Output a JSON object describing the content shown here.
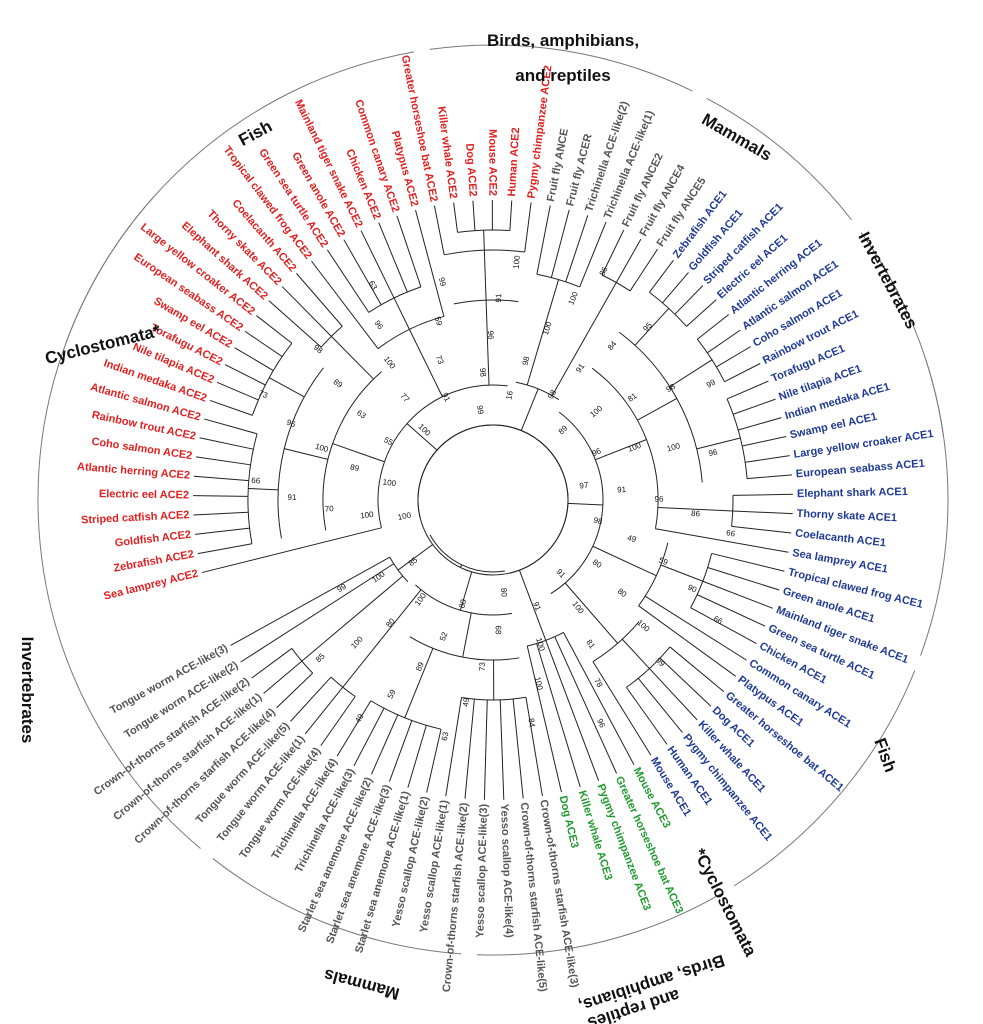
{
  "colors": {
    "ace2": "#e02020",
    "ace1": "#1f3a93",
    "ace3": "#1f9a2f",
    "like": "#555555"
  },
  "groups": {
    "fish_top": "Fish",
    "birds_top": "Birds, amphibians, and reptiles",
    "mammals_top": "Mammals",
    "invert_top": "Invertebrates",
    "cyclo_top": "Cyclostomata*",
    "invert_left": "Invertebrates",
    "mammals_bottom": "Mammals",
    "birds_bottom": "Birds, amphibians, and reptiles",
    "cyclo_bottom": "*Cyclostomata",
    "fish_right": "Fish"
  },
  "leaves": [
    {
      "label": "Sea lamprey ACE2",
      "cls": "ace2"
    },
    {
      "label": "Zebrafish ACE2",
      "cls": "ace2"
    },
    {
      "label": "Goldfish ACE2",
      "cls": "ace2"
    },
    {
      "label": "Striped catfish ACE2",
      "cls": "ace2"
    },
    {
      "label": "Electric eel ACE2",
      "cls": "ace2"
    },
    {
      "label": "Atlantic herring ACE2",
      "cls": "ace2"
    },
    {
      "label": "Coho salmon ACE2",
      "cls": "ace2"
    },
    {
      "label": "Rainbow trout ACE2",
      "cls": "ace2"
    },
    {
      "label": "Atlantic salmon ACE2",
      "cls": "ace2"
    },
    {
      "label": "Indian medaka ACE2",
      "cls": "ace2"
    },
    {
      "label": "Nile tilapia ACE2",
      "cls": "ace2"
    },
    {
      "label": "Torafugu ACE2",
      "cls": "ace2"
    },
    {
      "label": "Swamp eel ACE2",
      "cls": "ace2"
    },
    {
      "label": "European seabass ACE2",
      "cls": "ace2"
    },
    {
      "label": "Large yellow croaker ACE2",
      "cls": "ace2"
    },
    {
      "label": "Elephant shark ACE2",
      "cls": "ace2"
    },
    {
      "label": "Thorny skate ACE2",
      "cls": "ace2"
    },
    {
      "label": "Coelacanth ACE2",
      "cls": "ace2"
    },
    {
      "label": "Tropical clawed frog ACE2",
      "cls": "ace2"
    },
    {
      "label": "Green sea turtle ACE2",
      "cls": "ace2"
    },
    {
      "label": "Green anole ACE2",
      "cls": "ace2"
    },
    {
      "label": "Mainland tiger snake ACE2",
      "cls": "ace2"
    },
    {
      "label": "Chicken ACE2",
      "cls": "ace2"
    },
    {
      "label": "Common canary ACE2",
      "cls": "ace2"
    },
    {
      "label": "Platypus ACE2",
      "cls": "ace2"
    },
    {
      "label": "Greater horseshoe bat ACE2",
      "cls": "ace2"
    },
    {
      "label": "Killer whale ACE2",
      "cls": "ace2"
    },
    {
      "label": "Dog ACE2",
      "cls": "ace2"
    },
    {
      "label": "Mouse ACE2",
      "cls": "ace2"
    },
    {
      "label": "Human ACE2",
      "cls": "ace2"
    },
    {
      "label": "Pygmy chimpanzee ACE2",
      "cls": "ace2"
    },
    {
      "label": "Fruit fly ANCE",
      "cls": "like"
    },
    {
      "label": "Fruit fly ACER",
      "cls": "like"
    },
    {
      "label": "Trichinella ACE-like(2)",
      "cls": "like"
    },
    {
      "label": "Trichinella ACE-like(1)",
      "cls": "like"
    },
    {
      "label": "Fruit fly ANCE2",
      "cls": "like"
    },
    {
      "label": "Fruit fly ANCE4",
      "cls": "like"
    },
    {
      "label": "Fruit fly ANCE5",
      "cls": "like"
    },
    {
      "label": "Zebrafish ACE1",
      "cls": "ace1"
    },
    {
      "label": "Goldfish ACE1",
      "cls": "ace1"
    },
    {
      "label": "Striped catfish ACE1",
      "cls": "ace1"
    },
    {
      "label": "Electric eel ACE1",
      "cls": "ace1"
    },
    {
      "label": "Atlantic herring ACE1",
      "cls": "ace1"
    },
    {
      "label": "Atlantic salmon ACE1",
      "cls": "ace1"
    },
    {
      "label": "Coho salmon ACE1",
      "cls": "ace1"
    },
    {
      "label": "Rainbow trout ACE1",
      "cls": "ace1"
    },
    {
      "label": "Torafugu ACE1",
      "cls": "ace1"
    },
    {
      "label": "Nile tilapia ACE1",
      "cls": "ace1"
    },
    {
      "label": "Indian medaka ACE1",
      "cls": "ace1"
    },
    {
      "label": "Swamp eel ACE1",
      "cls": "ace1"
    },
    {
      "label": "Large yellow croaker ACE1",
      "cls": "ace1"
    },
    {
      "label": "European seabass ACE1",
      "cls": "ace1"
    },
    {
      "label": "Elephant shark ACE1",
      "cls": "ace1"
    },
    {
      "label": "Thorny skate ACE1",
      "cls": "ace1"
    },
    {
      "label": "Coelacanth ACE1",
      "cls": "ace1"
    },
    {
      "label": "Sea lamprey ACE1",
      "cls": "ace1"
    },
    {
      "label": "Tropical clawed frog ACE1",
      "cls": "ace1"
    },
    {
      "label": "Green anole ACE1",
      "cls": "ace1"
    },
    {
      "label": "Mainland tiger snake ACE1",
      "cls": "ace1"
    },
    {
      "label": "Green sea turtle ACE1",
      "cls": "ace1"
    },
    {
      "label": "Chicken ACE1",
      "cls": "ace1"
    },
    {
      "label": "Common canary ACE1",
      "cls": "ace1"
    },
    {
      "label": "Platypus ACE1",
      "cls": "ace1"
    },
    {
      "label": "Greater horseshoe bat ACE1",
      "cls": "ace1"
    },
    {
      "label": "Dog ACE1",
      "cls": "ace1"
    },
    {
      "label": "Killer whale ACE1",
      "cls": "ace1"
    },
    {
      "label": "Pygmy chimpanzee ACE1",
      "cls": "ace1"
    },
    {
      "label": "Human ACE1",
      "cls": "ace1"
    },
    {
      "label": "Mouse ACE1",
      "cls": "ace1"
    },
    {
      "label": "Mouse ACE3",
      "cls": "ace3"
    },
    {
      "label": "Greater horseshoe bat ACE3",
      "cls": "ace3"
    },
    {
      "label": "Pygmy chimpanzee ACE3",
      "cls": "ace3"
    },
    {
      "label": "Killer whale ACE3",
      "cls": "ace3"
    },
    {
      "label": "Dog ACE3",
      "cls": "ace3"
    },
    {
      "label": "Crown-of-thorns starfish ACE-like(3)",
      "cls": "like"
    },
    {
      "label": "Crown-of-thorns starfish ACE-like(5)",
      "cls": "like"
    },
    {
      "label": "Yesso scallop ACE-like(4)",
      "cls": "like"
    },
    {
      "label": "Yesso scallop ACE-like(3)",
      "cls": "like"
    },
    {
      "label": "Crown-of-thorns starfish ACE-like(2)",
      "cls": "like"
    },
    {
      "label": "Yesso scallop ACE-like(1)",
      "cls": "like"
    },
    {
      "label": "Yesso scallop ACE-like(2)",
      "cls": "like"
    },
    {
      "label": "Starlet sea anemone ACE-like(1)",
      "cls": "like"
    },
    {
      "label": "Starlet sea anemone ACE-like(3)",
      "cls": "like"
    },
    {
      "label": "Starlet sea anemone ACE-like(2)",
      "cls": "like"
    },
    {
      "label": "Trichinella ACE-like(3)",
      "cls": "like"
    },
    {
      "label": "Trichinella ACE-like(4)",
      "cls": "like"
    },
    {
      "label": "Tongue worm ACE-like(4)",
      "cls": "like"
    },
    {
      "label": "Tongue worm ACE-like(1)",
      "cls": "like"
    },
    {
      "label": "Tongue worm ACE-like(5)",
      "cls": "like"
    },
    {
      "label": "Crown-of-thorns starfish ACE-like(4)",
      "cls": "like"
    },
    {
      "label": "Crown-of-thorns starfish ACE-like(1)",
      "cls": "like"
    },
    {
      "label": "Crown-of-thorns starfish ACE-like(2)",
      "cls": "like"
    },
    {
      "label": "Tongue worm ACE-like(2)",
      "cls": "like"
    },
    {
      "label": "Tongue worm ACE-like(3)",
      "cls": "like"
    }
  ],
  "bootstraps": [
    "100",
    "100",
    "70",
    "91",
    "66",
    "100",
    "89",
    "100",
    "96",
    "73",
    "55",
    "63",
    "89",
    "98",
    "100",
    "77",
    "100",
    "96",
    "63",
    "91",
    "73",
    "59",
    "99",
    "99",
    "98",
    "96",
    "91",
    "100",
    "16",
    "98",
    "100",
    "100",
    "86",
    "98",
    "91",
    "84",
    "95",
    "89",
    "100",
    "81",
    "98",
    "99",
    "96",
    "100",
    "100",
    "96",
    "97",
    "91",
    "96",
    "86",
    "66",
    "98",
    "49",
    "59",
    "90",
    "66",
    "80",
    "80",
    "100",
    "99",
    "91",
    "100",
    "81",
    "78",
    "96",
    "91",
    "100",
    "100",
    "84",
    "80",
    "68",
    "73",
    "49",
    "63",
    "80",
    "52",
    "89",
    "59",
    "49",
    "100",
    "80",
    "100",
    "85",
    "85",
    "100",
    "99"
  ]
}
